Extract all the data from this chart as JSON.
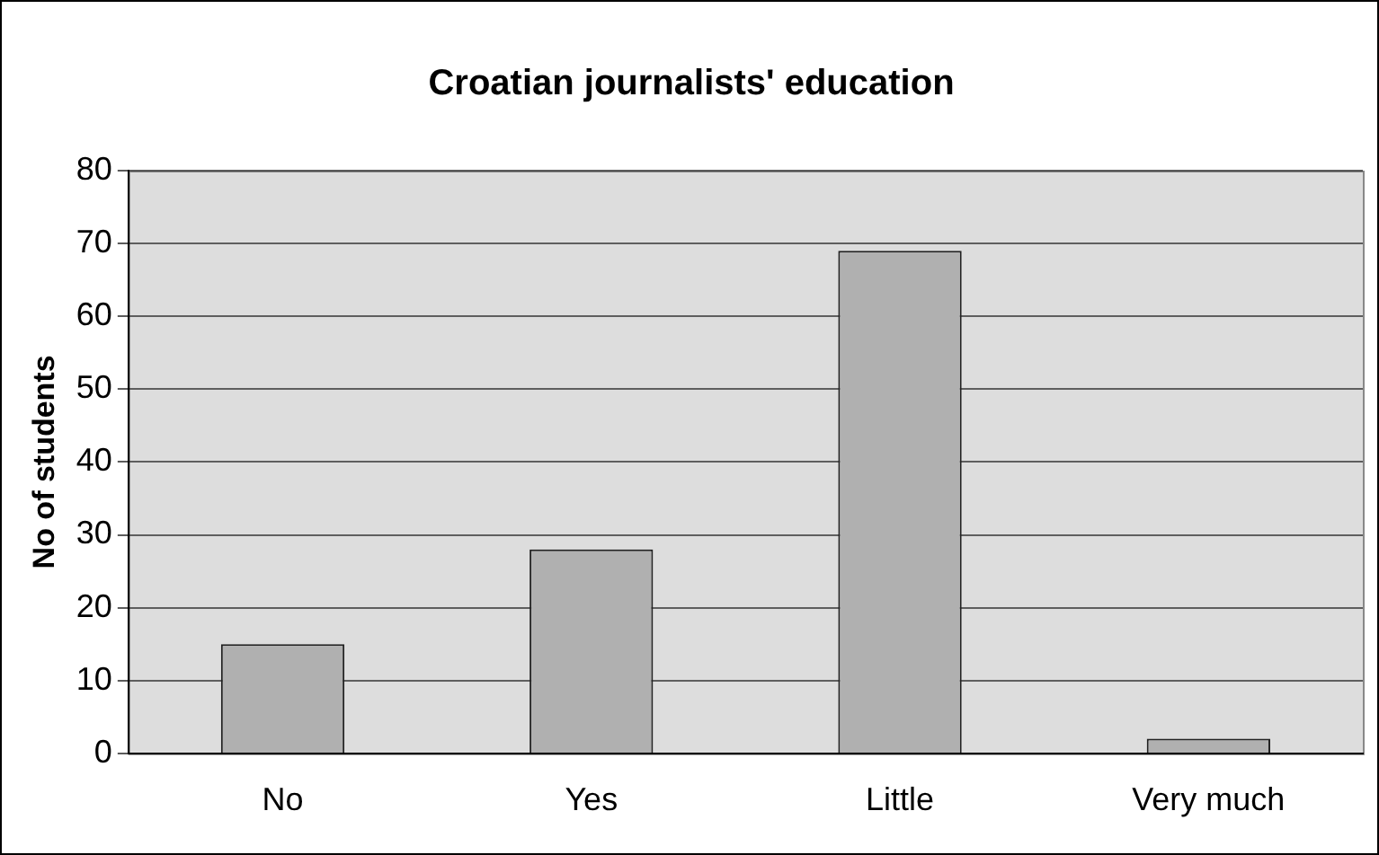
{
  "chart_data": {
    "type": "bar",
    "title": "Croatian journalists' education",
    "ylabel": "No of students",
    "categories": [
      "No",
      "Yes",
      "Little",
      "Very much"
    ],
    "values": [
      15,
      28,
      69,
      2
    ],
    "color": "#b0b0b0",
    "ylim": [
      0,
      80
    ],
    "yticks": [
      0,
      10,
      20,
      30,
      40,
      50,
      60,
      70,
      80
    ],
    "grid": "y",
    "legend": false
  }
}
